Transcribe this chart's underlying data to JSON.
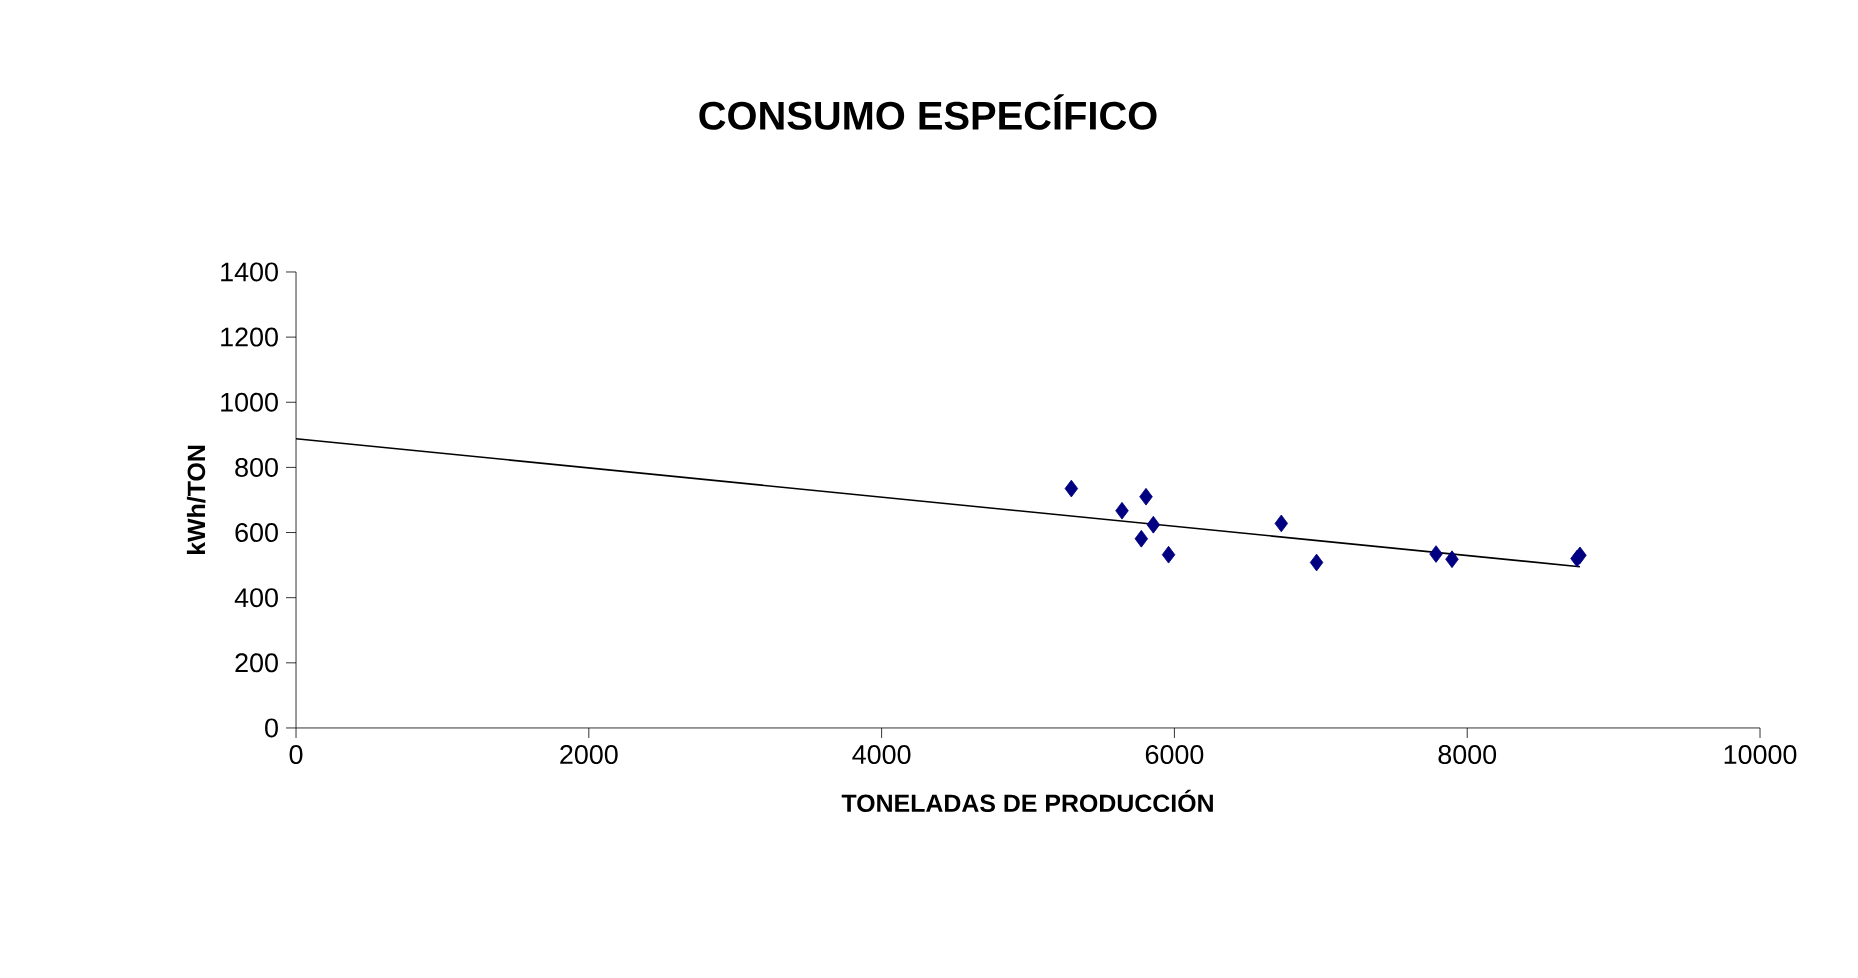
{
  "chart_data": {
    "type": "scatter",
    "title": "CONSUMO ESPECÍFICO",
    "xlabel": "TONELADAS DE PRODUCCIÓN",
    "ylabel": "kWh/TON",
    "xlim": [
      0,
      10000
    ],
    "xticks": [
      0,
      2000,
      4000,
      6000,
      8000,
      10000
    ],
    "ylim": [
      0,
      1400
    ],
    "yticks": [
      0,
      200,
      400,
      600,
      800,
      1000,
      1200,
      1400
    ],
    "grid": false,
    "marker": "diamond",
    "series": [
      {
        "color": "#000080",
        "x": [
          5296,
          5642,
          5806,
          5856,
          5774,
          5960,
          6730,
          6971,
          7787,
          7896,
          8770,
          8750
        ],
        "values": [
          735,
          667,
          710,
          624,
          581,
          532,
          628,
          508,
          534,
          518,
          530,
          520
        ]
      },
      {
        "type": "line",
        "color": "#000000",
        "marker": "none",
        "x": [
          0,
          8770
        ],
        "values": [
          888,
          495
        ]
      }
    ]
  }
}
